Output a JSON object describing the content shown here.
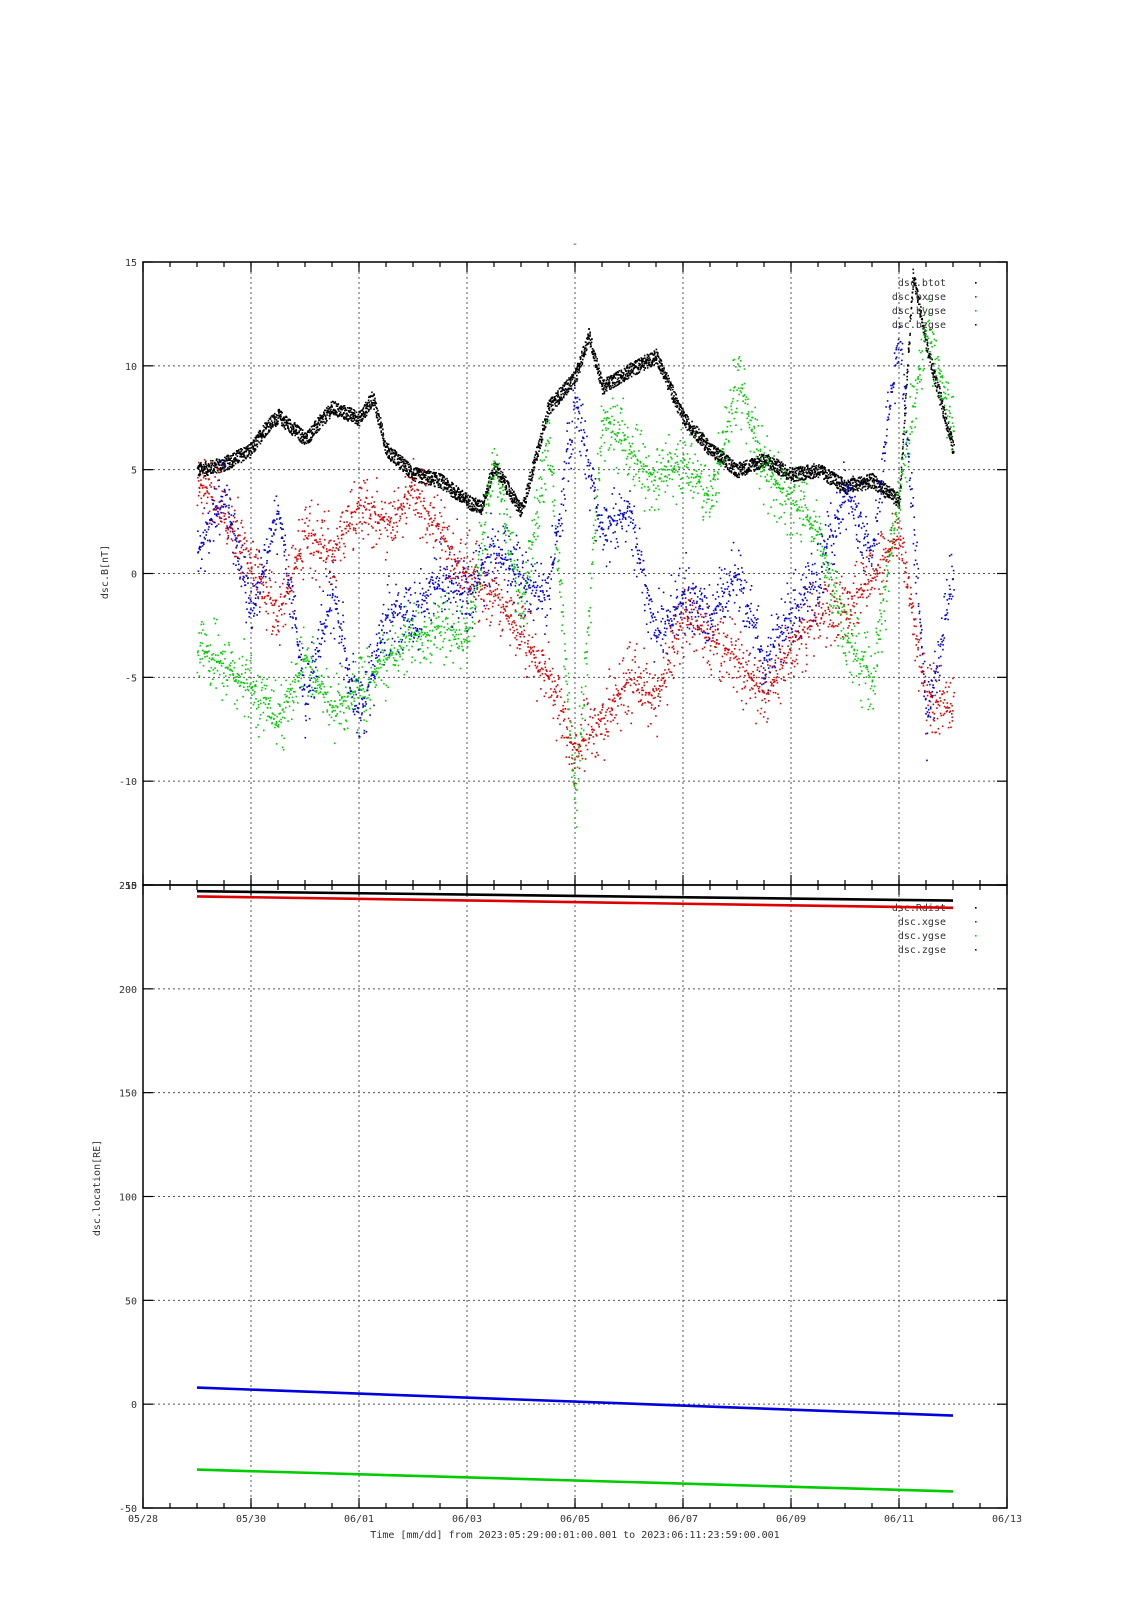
{
  "page_title": "-",
  "colors": {
    "black": "#000000",
    "red": "#dd0000",
    "green": "#00cc00",
    "blue": "#0000dd"
  },
  "chart_data": [
    {
      "type": "scatter",
      "title": "-",
      "xlabel": "",
      "ylabel": "dsc.B[nT]",
      "xlim": [
        "2023-05-28",
        "2023-06-13"
      ],
      "ylim": [
        -15,
        15
      ],
      "yticks": [
        15,
        10,
        5,
        0,
        -5,
        -10,
        -15
      ],
      "grid": true,
      "legend_position": "top-right",
      "series": [
        {
          "name": "dsc.btot",
          "color": "#000000",
          "x": [
            "2023-05-29 00:00",
            "2023-05-29 12:00",
            "2023-05-30 00:00",
            "2023-05-30 06:00",
            "2023-05-30 12:00",
            "2023-05-31 00:00",
            "2023-05-31 12:00",
            "2023-06-01 00:00",
            "2023-06-01 06:00",
            "2023-06-01 12:00",
            "2023-06-02 00:00",
            "2023-06-02 12:00",
            "2023-06-03 00:00",
            "2023-06-03 06:00",
            "2023-06-03 12:00",
            "2023-06-04 00:00",
            "2023-06-04 12:00",
            "2023-06-05 00:00",
            "2023-06-05 06:00",
            "2023-06-05 12:00",
            "2023-06-06 00:00",
            "2023-06-06 12:00",
            "2023-06-07 00:00",
            "2023-06-07 12:00",
            "2023-06-08 00:00",
            "2023-06-08 12:00",
            "2023-06-09 00:00",
            "2023-06-09 12:00",
            "2023-06-10 00:00",
            "2023-06-10 12:00",
            "2023-06-11 00:00",
            "2023-06-11 06:00",
            "2023-06-11 12:00",
            "2023-06-12 00:00"
          ],
          "y": [
            5.0,
            5.3,
            6.0,
            7.0,
            7.6,
            6.5,
            8.0,
            7.5,
            8.5,
            6.0,
            4.8,
            4.5,
            3.5,
            3.2,
            5.2,
            3.0,
            8.0,
            9.5,
            11.5,
            9.0,
            9.8,
            10.5,
            7.5,
            6.0,
            5.0,
            5.5,
            4.8,
            5.0,
            4.2,
            4.5,
            3.5,
            14.5,
            11.0,
            6.0
          ]
        },
        {
          "name": "dsc.bxgse",
          "color": "#dd0000",
          "x": [
            "2023-05-29 00:00",
            "2023-05-29 12:00",
            "2023-05-30 00:00",
            "2023-05-30 12:00",
            "2023-05-31 00:00",
            "2023-05-31 12:00",
            "2023-06-01 00:00",
            "2023-06-01 12:00",
            "2023-06-02 00:00",
            "2023-06-02 12:00",
            "2023-06-03 00:00",
            "2023-06-03 12:00",
            "2023-06-04 00:00",
            "2023-06-04 12:00",
            "2023-06-05 00:00",
            "2023-06-05 12:00",
            "2023-06-06 00:00",
            "2023-06-06 12:00",
            "2023-06-07 00:00",
            "2023-06-07 12:00",
            "2023-06-08 00:00",
            "2023-06-08 12:00",
            "2023-06-09 00:00",
            "2023-06-09 12:00",
            "2023-06-10 00:00",
            "2023-06-10 12:00",
            "2023-06-11 00:00",
            "2023-06-11 12:00",
            "2023-06-12 00:00"
          ],
          "y": [
            4.5,
            3.0,
            0.5,
            -2.0,
            2.0,
            1.0,
            3.5,
            2.5,
            4.0,
            2.0,
            0.0,
            -1.0,
            -3.0,
            -5.0,
            -8.5,
            -7.0,
            -5.0,
            -6.0,
            -2.0,
            -3.0,
            -4.0,
            -6.0,
            -3.5,
            -2.0,
            -1.5,
            0.0,
            2.0,
            -6.0,
            -6.5
          ]
        },
        {
          "name": "dsc.bygse",
          "color": "#00cc00",
          "x": [
            "2023-05-29 00:00",
            "2023-05-29 12:00",
            "2023-05-30 00:00",
            "2023-05-30 12:00",
            "2023-05-31 00:00",
            "2023-05-31 12:00",
            "2023-06-01 00:00",
            "2023-06-01 12:00",
            "2023-06-02 00:00",
            "2023-06-02 12:00",
            "2023-06-03 00:00",
            "2023-06-03 12:00",
            "2023-06-04 00:00",
            "2023-06-04 12:00",
            "2023-06-05 00:00",
            "2023-06-05 12:00",
            "2023-06-06 00:00",
            "2023-06-06 12:00",
            "2023-06-07 00:00",
            "2023-06-07 12:00",
            "2023-06-08 00:00",
            "2023-06-08 12:00",
            "2023-06-09 00:00",
            "2023-06-09 12:00",
            "2023-06-10 00:00",
            "2023-06-10 12:00",
            "2023-06-11 00:00",
            "2023-06-11 12:00",
            "2023-06-12 00:00"
          ],
          "y": [
            -3.5,
            -4.5,
            -5.5,
            -7.0,
            -4.0,
            -6.5,
            -5.5,
            -4.0,
            -3.0,
            -2.5,
            -3.0,
            5.5,
            -2.0,
            6.5,
            -11.0,
            7.5,
            6.0,
            4.5,
            5.5,
            3.5,
            9.5,
            5.0,
            3.5,
            2.0,
            -3.0,
            -5.0,
            4.0,
            12.0,
            7.0
          ]
        },
        {
          "name": "dsc.bzgse",
          "color": "#0000dd",
          "x": [
            "2023-05-29 00:00",
            "2023-05-29 12:00",
            "2023-05-30 00:00",
            "2023-05-30 12:00",
            "2023-05-31 00:00",
            "2023-05-31 12:00",
            "2023-06-01 00:00",
            "2023-06-01 12:00",
            "2023-06-02 00:00",
            "2023-06-02 12:00",
            "2023-06-03 00:00",
            "2023-06-03 12:00",
            "2023-06-04 00:00",
            "2023-06-04 12:00",
            "2023-06-05 00:00",
            "2023-06-05 12:00",
            "2023-06-06 00:00",
            "2023-06-06 12:00",
            "2023-06-07 00:00",
            "2023-06-07 12:00",
            "2023-06-08 00:00",
            "2023-06-08 12:00",
            "2023-06-09 00:00",
            "2023-06-09 12:00",
            "2023-06-10 00:00",
            "2023-06-10 12:00",
            "2023-06-11 00:00",
            "2023-06-11 12:00",
            "2023-06-12 00:00"
          ],
          "y": [
            1.0,
            4.0,
            -2.0,
            3.0,
            -6.0,
            -1.0,
            -7.0,
            -2.0,
            -2.0,
            0.0,
            -1.0,
            1.5,
            -0.5,
            -1.0,
            8.5,
            2.0,
            3.0,
            -3.0,
            -1.0,
            -2.0,
            0.0,
            -4.0,
            -2.0,
            0.0,
            4.0,
            1.0,
            12.0,
            -7.0,
            0.0
          ]
        }
      ]
    },
    {
      "type": "line",
      "xlabel": "Time [mm/dd]  from 2023:05:29:00:01:00.001  to  2023:06:11:23:59:00.001",
      "ylabel": "dsc.location[RE]",
      "xlim": [
        "2023-05-28",
        "2023-06-13"
      ],
      "ylim": [
        -50,
        250
      ],
      "yticks": [
        250,
        200,
        150,
        100,
        50,
        0,
        -50
      ],
      "xticks": [
        "05/28",
        "05/30",
        "06/01",
        "06/03",
        "06/05",
        "06/07",
        "06/09",
        "06/11",
        "06/13"
      ],
      "grid": true,
      "legend_position": "top-right",
      "series": [
        {
          "name": "dsc.Rdist",
          "color": "#000000",
          "x": [
            "2023-05-29 00:00",
            "2023-06-12 00:00"
          ],
          "y": [
            247,
            242.5
          ]
        },
        {
          "name": "dsc.xgse",
          "color": "#dd0000",
          "x": [
            "2023-05-29 00:00",
            "2023-06-12 00:00"
          ],
          "y": [
            244.5,
            239
          ]
        },
        {
          "name": "dsc.ygse",
          "color": "#00cc00",
          "x": [
            "2023-05-29 00:00",
            "2023-06-12 00:00"
          ],
          "y": [
            -31.5,
            -42
          ]
        },
        {
          "name": "dsc.zgse",
          "color": "#0000dd",
          "x": [
            "2023-05-29 00:00",
            "2023-06-12 00:00"
          ],
          "y": [
            8,
            -5.5
          ]
        }
      ]
    }
  ]
}
